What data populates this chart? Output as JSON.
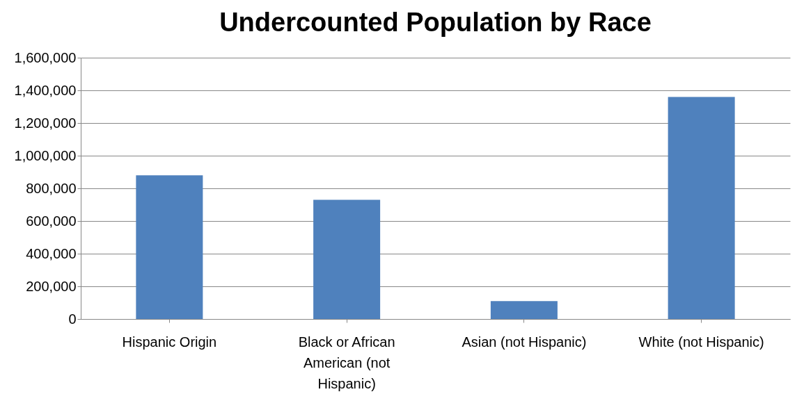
{
  "chart_data": {
    "type": "bar",
    "title": "Undercounted Population by Race",
    "categories": [
      "Hispanic Origin",
      "Black or African American (not Hispanic)",
      "Asian (not Hispanic)",
      "White (not Hispanic)"
    ],
    "values": [
      880000,
      730000,
      110000,
      1360000
    ],
    "color": "#4f81bd",
    "ylim": [
      0,
      1600000
    ],
    "yticks": [
      0,
      {
        "value": 200000,
        "label": "200,000"
      },
      {
        "value": 400000,
        "label": "400,000"
      },
      {
        "value": 600000,
        "label": "600,000"
      },
      {
        "value": 800000,
        "label": "800,000"
      },
      {
        "value": 1000000,
        "label": "1,000,000"
      },
      {
        "value": 1200000,
        "label": "1,200,000"
      },
      {
        "value": 1400000,
        "label": "1,400,000"
      },
      {
        "value": 1600000,
        "label": "1,600,000"
      }
    ],
    "grid": "y"
  }
}
